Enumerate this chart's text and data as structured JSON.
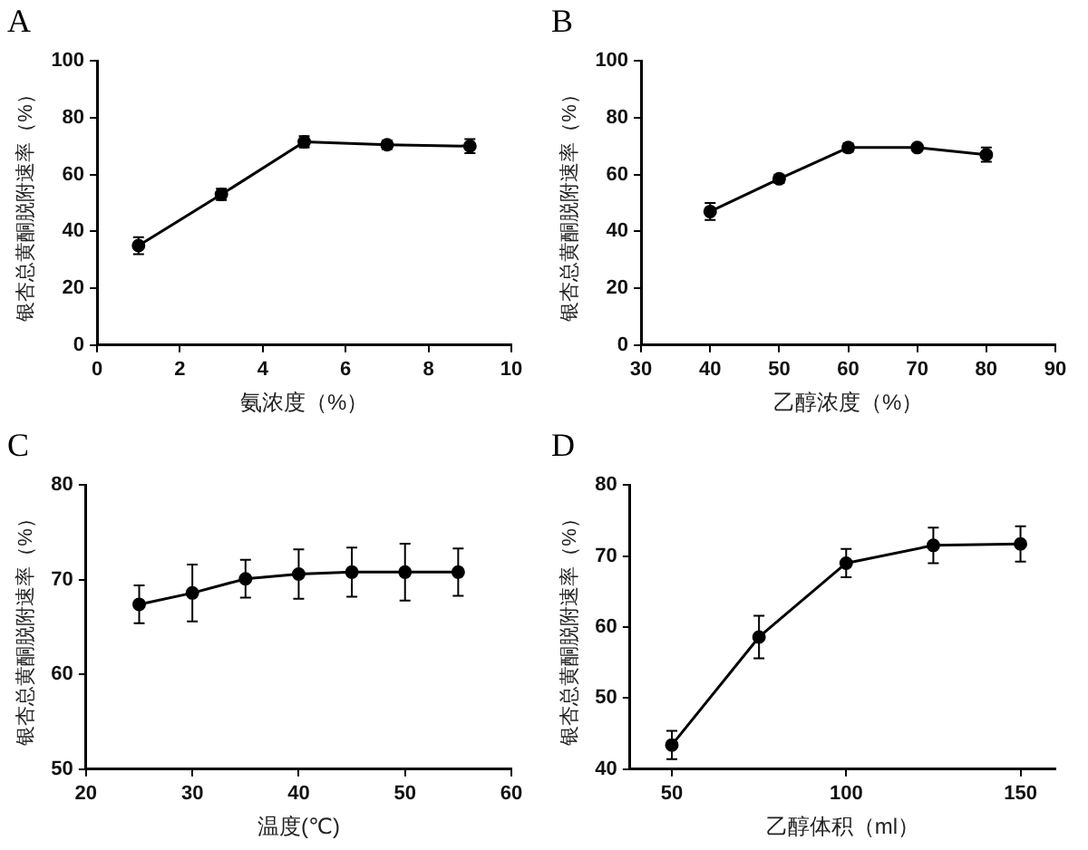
{
  "chart_data": [
    {
      "type": "line",
      "title": "A",
      "xlabel": "氨浓度（%）",
      "ylabel": "银杏总黄酮脱附速率（%）",
      "x": [
        1,
        3,
        5,
        7,
        9
      ],
      "xlim": [
        0,
        10
      ],
      "xticks": [
        0,
        2,
        4,
        6,
        8,
        10
      ],
      "ylim": [
        0,
        100
      ],
      "yticks": [
        0,
        20,
        40,
        60,
        80,
        100
      ],
      "grid": false,
      "marker": "circle",
      "series": [
        {
          "color": "#000000",
          "values": [
            35,
            53,
            71.5,
            70.5,
            70
          ],
          "errors": [
            3,
            2,
            2,
            1.5,
            2.5
          ]
        }
      ]
    },
    {
      "type": "line",
      "title": "B",
      "xlabel": "乙醇浓度（%）",
      "ylabel": "银杏总黄酮脱附速率（%）",
      "x": [
        40,
        50,
        60,
        70,
        80
      ],
      "xlim": [
        30,
        90
      ],
      "xticks": [
        30,
        40,
        50,
        60,
        70,
        80,
        90
      ],
      "ylim": [
        0,
        100
      ],
      "yticks": [
        0,
        20,
        40,
        60,
        80,
        100
      ],
      "grid": false,
      "marker": "circle",
      "series": [
        {
          "color": "#000000",
          "values": [
            47,
            58.5,
            69.5,
            69.5,
            67
          ],
          "errors": [
            3,
            1.5,
            1.5,
            1,
            2.5
          ]
        }
      ]
    },
    {
      "type": "line",
      "title": "C",
      "xlabel": "温度(℃)",
      "ylabel": "银杏总黄酮脱附速率（%）",
      "x": [
        25,
        30,
        35,
        40,
        45,
        50,
        55
      ],
      "xlim": [
        20,
        60
      ],
      "xticks": [
        20,
        30,
        40,
        50,
        60
      ],
      "ylim": [
        50,
        80
      ],
      "yticks": [
        50,
        60,
        70,
        80
      ],
      "grid": false,
      "marker": "circle",
      "series": [
        {
          "color": "#000000",
          "values": [
            67.4,
            68.6,
            70.1,
            70.6,
            70.8,
            70.8,
            70.8
          ],
          "errors": [
            2,
            3,
            2,
            2.6,
            2.6,
            3,
            2.5
          ]
        }
      ]
    },
    {
      "type": "line",
      "title": "D",
      "xlabel": "乙醇体积（ml）",
      "ylabel": "银杏总黄酮脱附速率（%）",
      "x": [
        50,
        75,
        100,
        125,
        150
      ],
      "xlim": [
        38,
        160
      ],
      "xticks": [
        50,
        100,
        150
      ],
      "ylim": [
        40,
        80
      ],
      "yticks": [
        40,
        50,
        60,
        70,
        80
      ],
      "grid": false,
      "marker": "circle",
      "series": [
        {
          "color": "#000000",
          "values": [
            43.4,
            58.6,
            69,
            71.5,
            71.7
          ],
          "errors": [
            2,
            3,
            2,
            2.5,
            2.5
          ]
        }
      ]
    }
  ]
}
